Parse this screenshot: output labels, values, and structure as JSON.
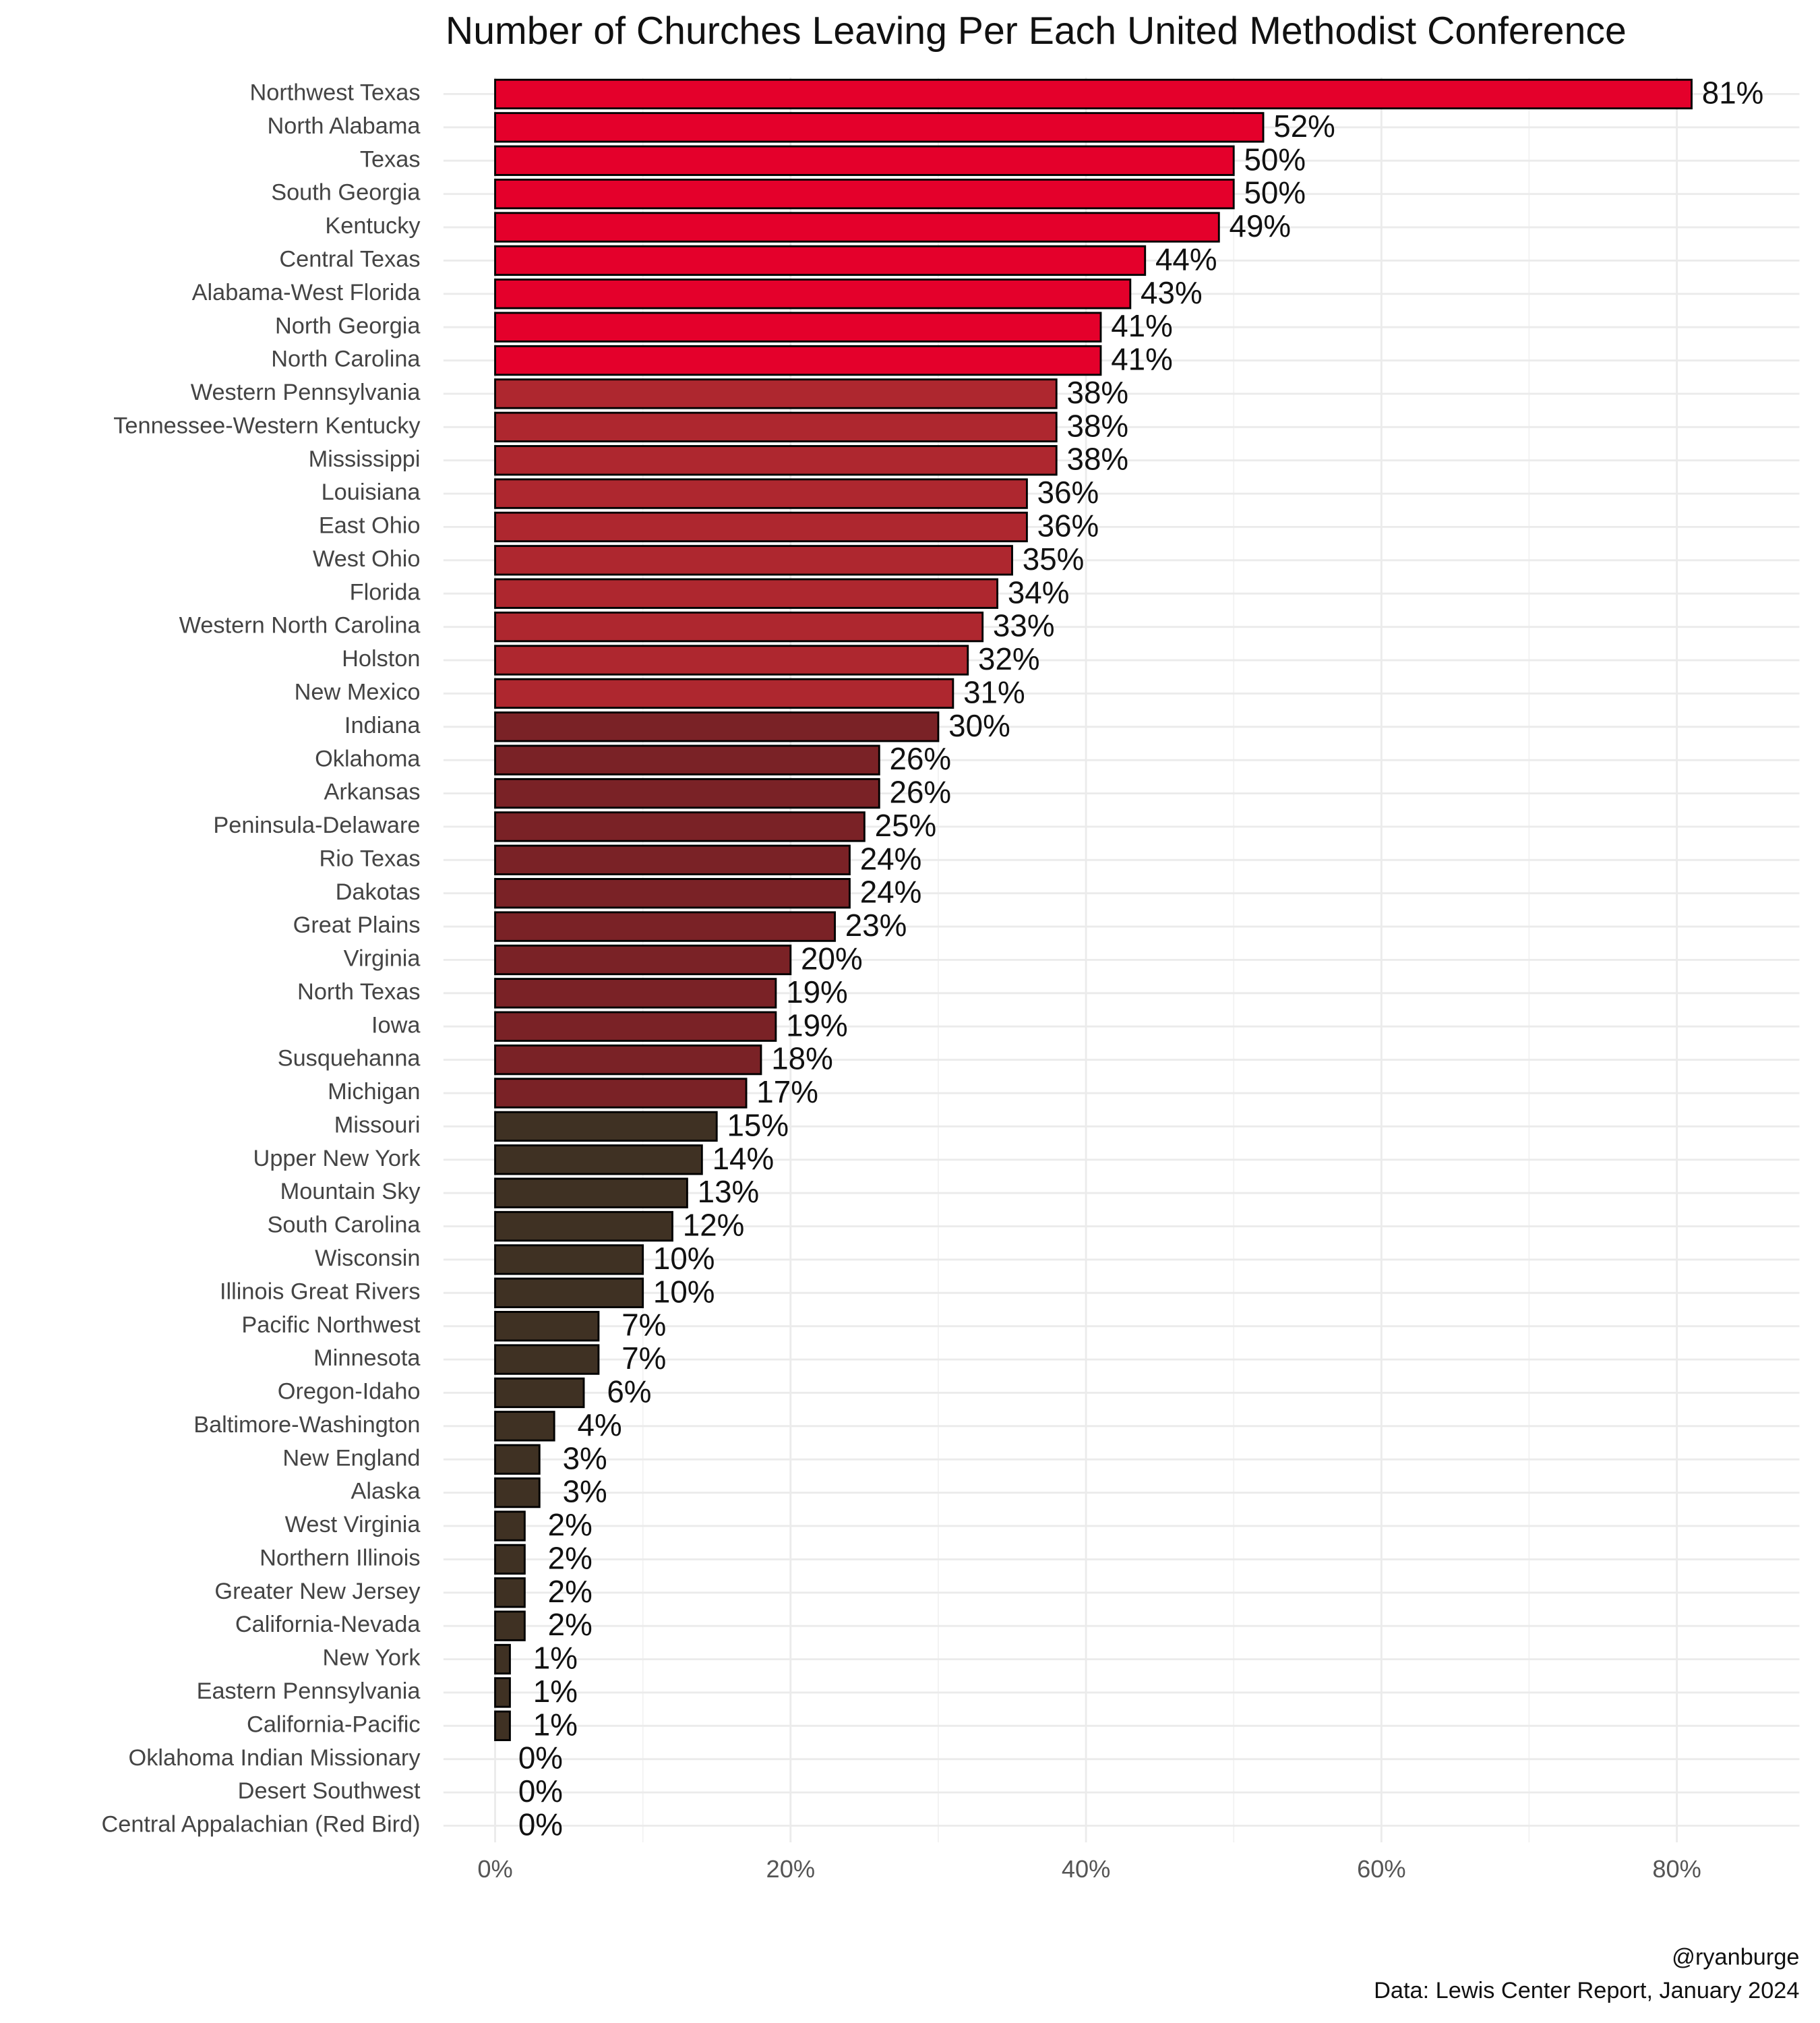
{
  "chart_data": {
    "type": "hbar",
    "title": "Number of Churches Leaving Per Each United Methodist Conference",
    "categories": [
      "Northwest Texas",
      "North Alabama",
      "Texas",
      "South Georgia",
      "Kentucky",
      "Central Texas",
      "Alabama-West Florida",
      "North Georgia",
      "North Carolina",
      "Western Pennsylvania",
      "Tennessee-Western Kentucky",
      "Mississippi",
      "Louisiana",
      "East Ohio",
      "West Ohio",
      "Florida",
      "Western North Carolina",
      "Holston",
      "New Mexico",
      "Indiana",
      "Oklahoma",
      "Arkansas",
      "Peninsula-Delaware",
      "Rio Texas",
      "Dakotas",
      "Great Plains",
      "Virginia",
      "North Texas",
      "Iowa",
      "Susquehanna",
      "Michigan",
      "Missouri",
      "Upper New York",
      "Mountain Sky",
      "South Carolina",
      "Wisconsin",
      "Illinois Great Rivers",
      "Pacific Northwest",
      "Minnesota",
      "Oregon-Idaho",
      "Baltimore-Washington",
      "New England",
      "Alaska",
      "West Virginia",
      "Northern Illinois",
      "Greater New Jersey",
      "California-Nevada",
      "New York",
      "Eastern Pennsylvania",
      "California-Pacific",
      "Oklahoma Indian Missionary",
      "Desert Southwest",
      "Central Appalachian (Red Bird)"
    ],
    "values": [
      81,
      52,
      50,
      50,
      49,
      44,
      43,
      41,
      41,
      38,
      38,
      38,
      36,
      36,
      35,
      34,
      33,
      32,
      31,
      30,
      26,
      26,
      25,
      24,
      24,
      23,
      20,
      19,
      19,
      18,
      17,
      15,
      14,
      13,
      12,
      10,
      10,
      7,
      7,
      6,
      4,
      3,
      3,
      2,
      2,
      2,
      2,
      1,
      1,
      1,
      0,
      0,
      0
    ],
    "value_labels": [
      "81%",
      "52%",
      "50%",
      "50%",
      "49%",
      "44%",
      "43%",
      "41%",
      "41%",
      "38%",
      "38%",
      "38%",
      "36%",
      "36%",
      "35%",
      "34%",
      "33%",
      "32%",
      "31%",
      "30%",
      "26%",
      "26%",
      "25%",
      "24%",
      "24%",
      "23%",
      "20%",
      "19%",
      "19%",
      "18%",
      "17%",
      "15%",
      "14%",
      "13%",
      "12%",
      "10%",
      "10%",
      "7%",
      "7%",
      "6%",
      "4%",
      "3%",
      "3%",
      "2%",
      "2%",
      "2%",
      "2%",
      "1%",
      "1%",
      "1%",
      "0%",
      "0%",
      "0%"
    ],
    "colors": [
      "#e4002b",
      "#e4002b",
      "#e4002b",
      "#e4002b",
      "#e4002b",
      "#e4002b",
      "#e4002b",
      "#e4002b",
      "#e4002b",
      "#ae272f",
      "#ae272f",
      "#ae272f",
      "#ae272f",
      "#ae272f",
      "#ae272f",
      "#ae272f",
      "#ae272f",
      "#ae272f",
      "#ae272f",
      "#7a2226",
      "#7a2226",
      "#7a2226",
      "#7a2226",
      "#7a2226",
      "#7a2226",
      "#7a2226",
      "#7a2226",
      "#7a2226",
      "#7a2226",
      "#7a2226",
      "#7a2226",
      "#3f3123",
      "#3f3123",
      "#3f3123",
      "#3f3123",
      "#3f3123",
      "#3f3123",
      "#3f3123",
      "#3f3123",
      "#3f3123",
      "#3f3123",
      "#3f3123",
      "#3f3123",
      "#3f3123",
      "#3f3123",
      "#3f3123",
      "#3f3123",
      "#3f3123",
      "#3f3123",
      "#3f3123",
      "#3f3123",
      "#3f3123",
      "#3f3123"
    ],
    "xlim": [
      -3.5,
      88.3
    ],
    "xticks": [
      {
        "value": 0,
        "label": "0%"
      },
      {
        "value": 20,
        "label": "20%"
      },
      {
        "value": 40,
        "label": "40%"
      },
      {
        "value": 60,
        "label": "60%"
      },
      {
        "value": 80,
        "label": "80%"
      }
    ],
    "minor_xticks": [
      10,
      30,
      50,
      70
    ],
    "grid": true,
    "caption": [
      "@ryanburge",
      "Data: Lewis Center Report, January 2024"
    ]
  }
}
